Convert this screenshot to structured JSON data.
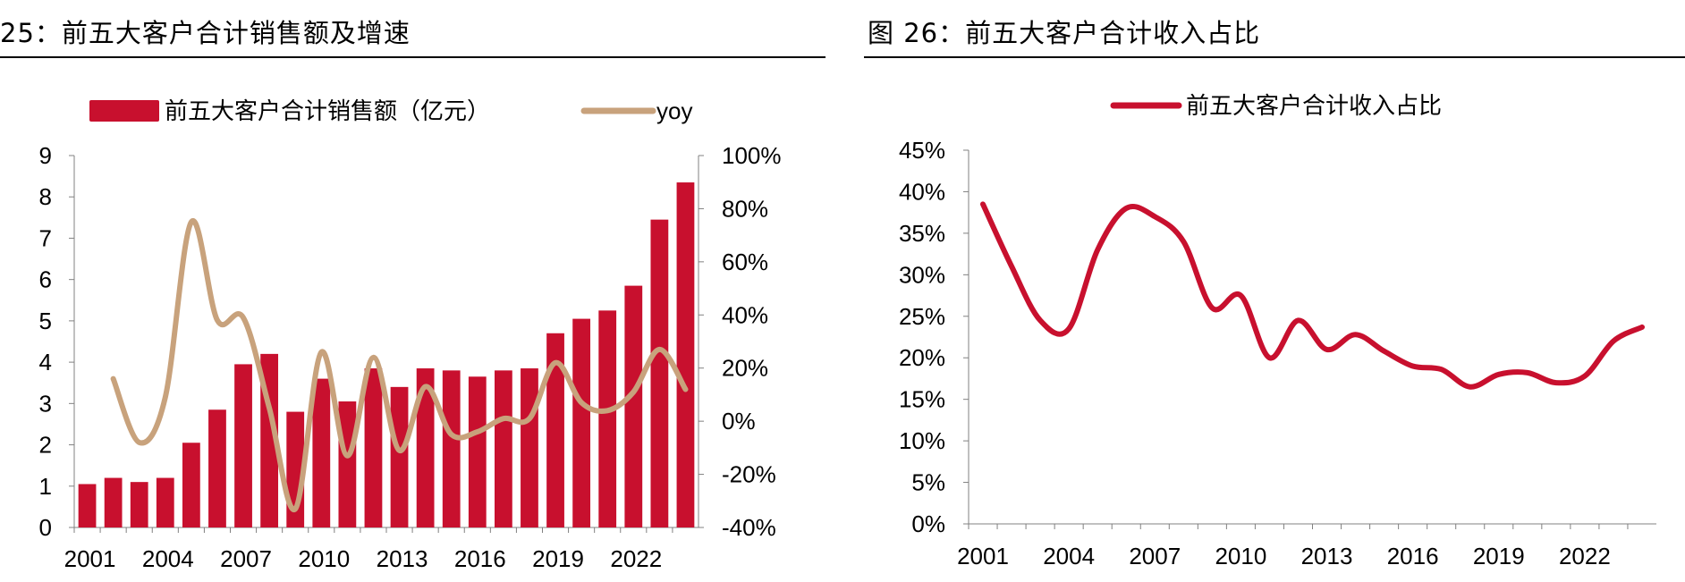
{
  "figure_left": {
    "title": "25：前五大客户合计销售额及增速"
  },
  "figure_right": {
    "title": "图 26：前五大客户合计收入占比"
  },
  "colors": {
    "bar": "#c8102e",
    "yoy": "#c8a27c",
    "ratio": "#c8102e",
    "axis": "#808080"
  },
  "chart_data": [
    {
      "type": "bar",
      "title": "前五大客户合计销售额及增速",
      "categories": [
        "2001",
        "2002",
        "2003",
        "2004",
        "2005",
        "2006",
        "2007",
        "2008",
        "2009",
        "2010",
        "2011",
        "2012",
        "2013",
        "2014",
        "2015",
        "2016",
        "2017",
        "2018",
        "2019",
        "2020",
        "2021",
        "2022",
        "2023",
        "2024"
      ],
      "x_tick_labels": [
        "2001",
        "2004",
        "2007",
        "2010",
        "2013",
        "2016",
        "2019",
        "2022"
      ],
      "series": [
        {
          "name": "前五大客户合计销售额（亿元）",
          "type": "bar",
          "axis": "left",
          "values": [
            1.05,
            1.2,
            1.1,
            1.2,
            2.05,
            2.85,
            3.95,
            4.2,
            2.8,
            3.6,
            3.05,
            3.85,
            3.4,
            3.85,
            3.8,
            3.65,
            3.8,
            3.85,
            4.7,
            5.05,
            5.25,
            5.85,
            7.45,
            8.35
          ]
        },
        {
          "name": "yoy",
          "type": "line",
          "axis": "right",
          "values": [
            null,
            0.16,
            -0.08,
            0.09,
            0.75,
            0.38,
            0.39,
            0.05,
            -0.33,
            0.26,
            -0.13,
            0.24,
            -0.11,
            0.13,
            -0.05,
            -0.04,
            0.01,
            0.01,
            0.22,
            0.07,
            0.04,
            0.11,
            0.27,
            0.12
          ]
        }
      ],
      "y_left": {
        "min": 0,
        "max": 9,
        "ticks": [
          "0",
          "1",
          "2",
          "3",
          "4",
          "5",
          "6",
          "7",
          "8",
          "9"
        ]
      },
      "y_right": {
        "min": -0.4,
        "max": 1.0,
        "ticks": [
          "-40%",
          "-20%",
          "0%",
          "20%",
          "40%",
          "60%",
          "80%",
          "100%"
        ]
      },
      "legend": {
        "position": "top",
        "bar_label": "前五大客户合计销售额（亿元）",
        "line_label": "yoy"
      }
    },
    {
      "type": "line",
      "title": "前五大客户合计收入占比",
      "x": [
        "2001",
        "2002",
        "2003",
        "2004",
        "2005",
        "2006",
        "2007",
        "2008",
        "2009",
        "2010",
        "2011",
        "2012",
        "2013",
        "2014",
        "2015",
        "2016",
        "2017",
        "2018",
        "2019",
        "2020",
        "2021",
        "2022",
        "2023",
        "2024"
      ],
      "x_tick_labels": [
        "2001",
        "2004",
        "2007",
        "2010",
        "2013",
        "2016",
        "2019",
        "2022"
      ],
      "series": [
        {
          "name": "前五大客户合计收入占比",
          "values": [
            0.385,
            0.31,
            0.245,
            0.235,
            0.33,
            0.38,
            0.37,
            0.34,
            0.26,
            0.275,
            0.2,
            0.245,
            0.21,
            0.228,
            0.208,
            0.19,
            0.186,
            0.165,
            0.18,
            0.182,
            0.17,
            0.178,
            0.22,
            0.237
          ]
        }
      ],
      "y": {
        "min": 0,
        "max": 0.45,
        "ticks": [
          "0%",
          "5%",
          "10%",
          "15%",
          "20%",
          "25%",
          "30%",
          "35%",
          "40%",
          "45%"
        ]
      },
      "legend": {
        "position": "top",
        "label": "前五大客户合计收入占比"
      }
    }
  ]
}
